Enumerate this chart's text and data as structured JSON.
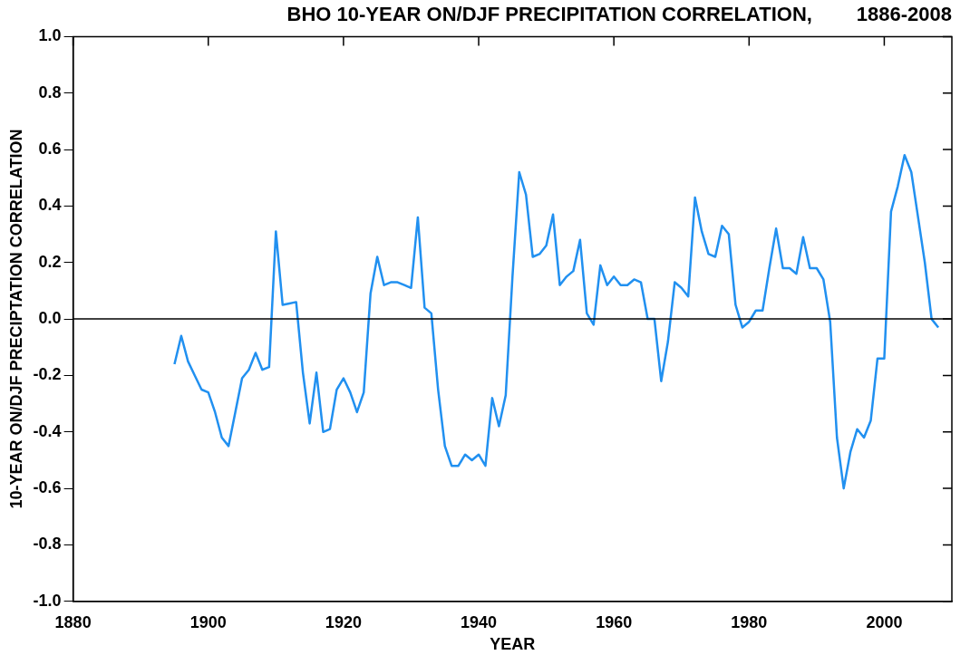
{
  "chart_data": {
    "type": "line",
    "title": "BHO 10-YEAR ON/DJF PRECIPITATION CORRELATION,        1886-2008",
    "xlabel": "YEAR",
    "ylabel": "10-YEAR ON/DJF PRECIPTATION CORRELATION",
    "x": [
      1895,
      1896,
      1897,
      1898,
      1899,
      1900,
      1901,
      1902,
      1903,
      1904,
      1905,
      1906,
      1907,
      1908,
      1909,
      1910,
      1911,
      1912,
      1913,
      1914,
      1915,
      1916,
      1917,
      1918,
      1919,
      1920,
      1921,
      1922,
      1923,
      1924,
      1925,
      1926,
      1927,
      1928,
      1929,
      1930,
      1931,
      1932,
      1933,
      1934,
      1935,
      1936,
      1937,
      1938,
      1939,
      1940,
      1941,
      1942,
      1943,
      1944,
      1945,
      1946,
      1947,
      1948,
      1949,
      1950,
      1951,
      1952,
      1953,
      1954,
      1955,
      1956,
      1957,
      1958,
      1959,
      1960,
      1961,
      1962,
      1963,
      1964,
      1965,
      1966,
      1967,
      1968,
      1969,
      1970,
      1971,
      1972,
      1973,
      1974,
      1975,
      1976,
      1977,
      1978,
      1979,
      1980,
      1981,
      1982,
      1983,
      1984,
      1985,
      1986,
      1987,
      1988,
      1989,
      1990,
      1991,
      1992,
      1993,
      1994,
      1995,
      1996,
      1997,
      1998,
      1999,
      2000,
      2001,
      2002,
      2003,
      2004,
      2005,
      2006,
      2007,
      2008
    ],
    "series": [
      {
        "color": "#2190f0",
        "values": [
          -0.16,
          -0.06,
          -0.15,
          -0.2,
          -0.25,
          -0.26,
          -0.33,
          -0.42,
          -0.45,
          -0.33,
          -0.21,
          -0.18,
          -0.12,
          -0.18,
          -0.17,
          0.31,
          0.05,
          0.055,
          0.06,
          -0.19,
          -0.37,
          -0.19,
          -0.4,
          -0.39,
          -0.25,
          -0.21,
          -0.26,
          -0.33,
          -0.26,
          0.09,
          0.22,
          0.12,
          0.13,
          0.13,
          0.12,
          0.11,
          0.36,
          0.04,
          0.02,
          -0.25,
          -0.45,
          -0.52,
          -0.52,
          -0.48,
          -0.5,
          -0.48,
          -0.52,
          -0.28,
          -0.38,
          -0.27,
          0.15,
          0.52,
          0.44,
          0.22,
          0.23,
          0.26,
          0.37,
          0.12,
          0.15,
          0.17,
          0.28,
          0.02,
          -0.02,
          0.19,
          0.12,
          0.15,
          0.12,
          0.12,
          0.14,
          0.13,
          0.0,
          0.0,
          -0.22,
          -0.08,
          0.13,
          0.11,
          0.08,
          0.43,
          0.31,
          0.23,
          0.22,
          0.33,
          0.3,
          0.05,
          -0.03,
          -0.01,
          0.03,
          0.03,
          0.18,
          0.32,
          0.18,
          0.18,
          0.16,
          0.29,
          0.18,
          0.18,
          0.14,
          -0.01,
          -0.42,
          -0.6,
          -0.47,
          -0.39,
          -0.42,
          -0.36,
          -0.14,
          -0.14,
          0.38,
          0.47,
          0.58,
          0.52,
          0.36,
          0.2,
          0.0,
          -0.03
        ]
      }
    ],
    "xlim": [
      1880,
      2010
    ],
    "xticks": [
      1880,
      1900,
      1920,
      1940,
      1960,
      1980,
      2000
    ],
    "ylim": [
      -1.0,
      1.0
    ],
    "yticks": [
      {
        "value": -1.0,
        "label": "-1.0"
      },
      {
        "value": -0.8,
        "label": "-0.8"
      },
      {
        "value": -0.6,
        "label": "-0.6"
      },
      {
        "value": -0.4,
        "label": "-0.4"
      },
      {
        "value": -0.2,
        "label": "-0.2"
      },
      {
        "value": 0,
        "label": "0.0"
      },
      {
        "value": 0.2,
        "label": "0.2"
      },
      {
        "value": 0.4,
        "label": "0.4"
      },
      {
        "value": 0.6,
        "label": "0.6"
      },
      {
        "value": 0.8,
        "label": "0.8"
      },
      {
        "value": 1.0,
        "label": "1.0"
      }
    ],
    "ref_lines": [
      {
        "axis": "y",
        "value": 0,
        "color": "#000000"
      }
    ],
    "grid": false,
    "legend": false,
    "marker": "none",
    "line_style": "solid"
  }
}
